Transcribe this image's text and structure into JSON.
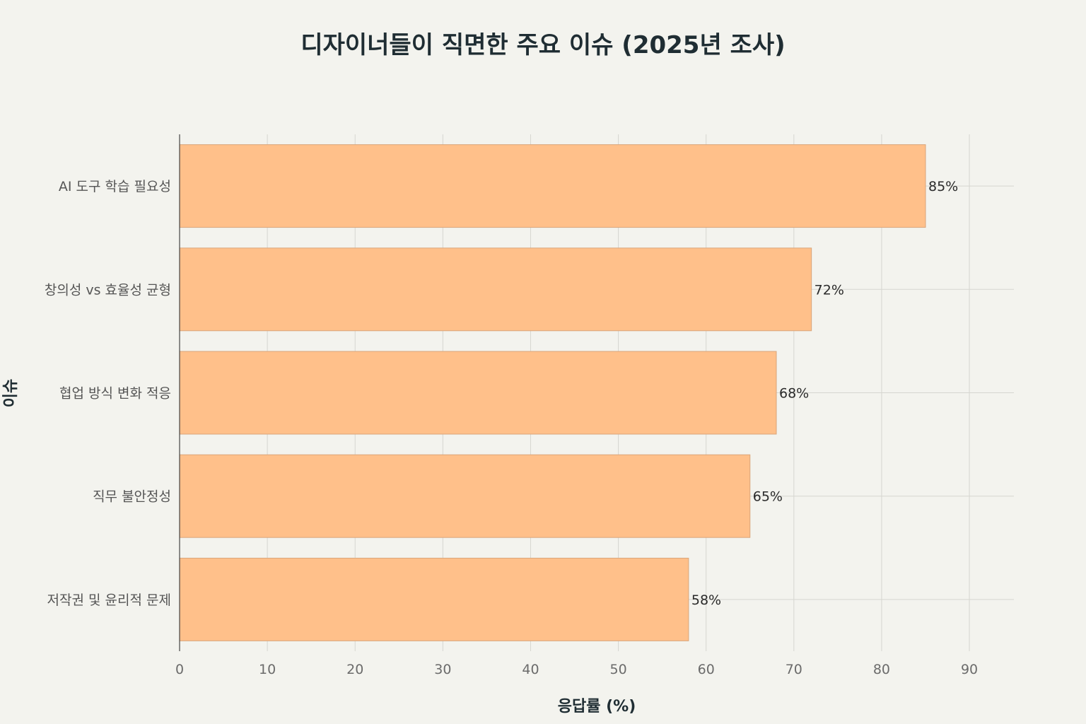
{
  "chart_data": {
    "type": "bar",
    "orientation": "horizontal",
    "title": "디자이너들이 직면한 주요 이슈 (2025년 조사)",
    "xlabel": "응답률 (%)",
    "ylabel": "이슈",
    "categories": [
      "AI 도구 학습 필요성",
      "창의성 vs 효율성 균형",
      "협업 방식 변화 적응",
      "직무 불안정성",
      "저작권 및 윤리적 문제"
    ],
    "values": [
      85,
      72,
      68,
      65,
      58
    ],
    "data_labels": [
      "85%",
      "72%",
      "68%",
      "65%",
      "58%"
    ],
    "xlim": [
      0,
      95
    ],
    "xticks": [
      0,
      10,
      20,
      30,
      40,
      50,
      60,
      70,
      80,
      90
    ],
    "grid": true,
    "legend": "none",
    "colors": {
      "bar_fill": "#ffc08a",
      "bar_stroke": "#d9a57a",
      "grid": "#d6d6d0",
      "axis": "#444444",
      "background": "#f3f3ee"
    }
  }
}
